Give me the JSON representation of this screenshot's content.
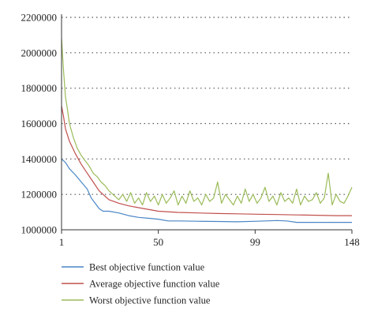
{
  "chart_data": {
    "type": "line",
    "title": "",
    "xlabel": "",
    "ylabel": "",
    "xlim": [
      1,
      148
    ],
    "ylim": [
      1000000,
      2200000
    ],
    "x_ticks": [
      1,
      50,
      99,
      148
    ],
    "x_tick_labels": [
      "1",
      "50",
      "99",
      "148"
    ],
    "y_ticks": [
      1000000,
      1200000,
      1400000,
      1600000,
      1800000,
      2000000,
      2200000
    ],
    "y_tick_labels": [
      "1000000",
      "1200000",
      "1400000",
      "1600000",
      "1800000",
      "2000000",
      "2200000"
    ],
    "grid": "horizontal dotted",
    "legend_position": "bottom",
    "series": [
      {
        "name": "Best objective function value",
        "color": "#4a86c5",
        "x": [
          1,
          3,
          5,
          8,
          11,
          14,
          16,
          18,
          20,
          22,
          25,
          30,
          35,
          40,
          45,
          50,
          55,
          60,
          70,
          80,
          90,
          100,
          110,
          115,
          120,
          130,
          140,
          148
        ],
        "y": [
          1400000,
          1380000,
          1345000,
          1310000,
          1270000,
          1230000,
          1180000,
          1150000,
          1120000,
          1105000,
          1105000,
          1095000,
          1080000,
          1070000,
          1065000,
          1060000,
          1050000,
          1050000,
          1048000,
          1047000,
          1045000,
          1048000,
          1052000,
          1050000,
          1042000,
          1042000,
          1042000,
          1042000
        ]
      },
      {
        "name": "Average objective function value",
        "color": "#c0504d",
        "x": [
          1,
          2,
          3,
          5,
          8,
          11,
          14,
          17,
          20,
          25,
          30,
          35,
          40,
          50,
          60,
          70,
          80,
          90,
          100,
          110,
          120,
          130,
          140,
          148
        ],
        "y": [
          1700000,
          1640000,
          1570000,
          1500000,
          1430000,
          1370000,
          1320000,
          1270000,
          1220000,
          1170000,
          1150000,
          1135000,
          1125000,
          1105000,
          1098000,
          1095000,
          1092000,
          1090000,
          1088000,
          1086000,
          1084000,
          1082000,
          1080000,
          1080000
        ]
      },
      {
        "name": "Worst objective function value",
        "color": "#9bbb59",
        "x": [
          1,
          2,
          3,
          4,
          5,
          7,
          9,
          11,
          13,
          15,
          17,
          19,
          21,
          23,
          25,
          27,
          30,
          32,
          34,
          36,
          38,
          40,
          42,
          44,
          46,
          48,
          50,
          52,
          54,
          56,
          58,
          60,
          62,
          64,
          66,
          68,
          70,
          72,
          74,
          76,
          78,
          80,
          82,
          84,
          86,
          88,
          90,
          92,
          94,
          96,
          98,
          100,
          102,
          104,
          106,
          108,
          110,
          112,
          114,
          116,
          118,
          120,
          122,
          124,
          126,
          128,
          130,
          132,
          134,
          136,
          138,
          140,
          142,
          144,
          146,
          148
        ],
        "y": [
          2080000,
          1900000,
          1750000,
          1680000,
          1600000,
          1520000,
          1460000,
          1420000,
          1390000,
          1360000,
          1320000,
          1300000,
          1270000,
          1250000,
          1220000,
          1200000,
          1170000,
          1200000,
          1160000,
          1210000,
          1150000,
          1180000,
          1140000,
          1210000,
          1160000,
          1190000,
          1140000,
          1200000,
          1150000,
          1180000,
          1220000,
          1140000,
          1190000,
          1150000,
          1220000,
          1160000,
          1180000,
          1140000,
          1200000,
          1160000,
          1180000,
          1270000,
          1150000,
          1200000,
          1170000,
          1140000,
          1190000,
          1150000,
          1230000,
          1160000,
          1200000,
          1150000,
          1180000,
          1240000,
          1160000,
          1190000,
          1140000,
          1210000,
          1160000,
          1180000,
          1150000,
          1230000,
          1140000,
          1190000,
          1160000,
          1170000,
          1210000,
          1150000,
          1180000,
          1320000,
          1140000,
          1200000,
          1160000,
          1150000,
          1190000,
          1240000
        ]
      }
    ]
  }
}
